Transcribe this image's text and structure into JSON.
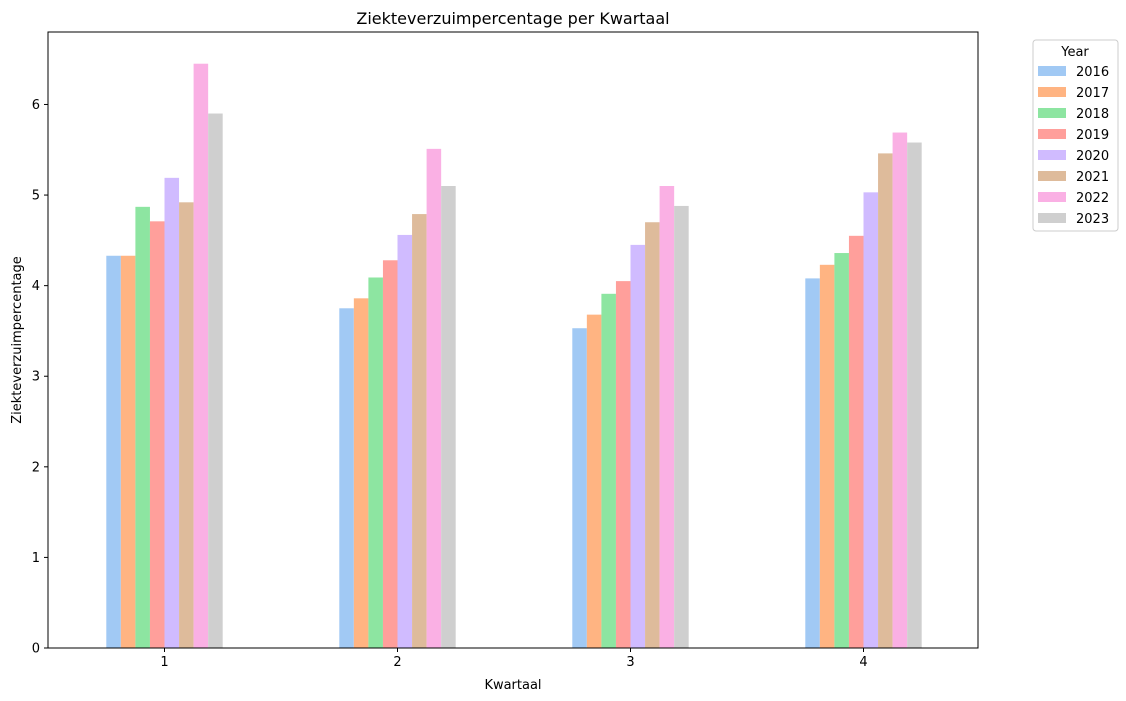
{
  "chart_data": {
    "type": "bar",
    "title": "Ziekteverzuimpercentage per Kwartaal",
    "xlabel": "Kwartaal",
    "ylabel": "Ziekteverzuimpercentage",
    "categories": [
      "1",
      "2",
      "3",
      "4"
    ],
    "ylim": [
      0,
      6.8
    ],
    "yticks": [
      0,
      1,
      2,
      3,
      4,
      5,
      6
    ],
    "grid": false,
    "legend": {
      "title": "Year",
      "placement": "outside-top-right"
    },
    "series": [
      {
        "name": "2016",
        "color": "#a1c9f4",
        "values": [
          4.33,
          3.75,
          3.53,
          4.08
        ]
      },
      {
        "name": "2017",
        "color": "#ffb482",
        "values": [
          4.33,
          3.86,
          3.68,
          4.23
        ]
      },
      {
        "name": "2018",
        "color": "#8de5a1",
        "values": [
          4.87,
          4.09,
          3.91,
          4.36
        ]
      },
      {
        "name": "2019",
        "color": "#ff9f9b",
        "values": [
          4.71,
          4.28,
          4.05,
          4.55
        ]
      },
      {
        "name": "2020",
        "color": "#d0bbff",
        "values": [
          5.19,
          4.56,
          4.45,
          5.03
        ]
      },
      {
        "name": "2021",
        "color": "#debb9b",
        "values": [
          4.92,
          4.79,
          4.7,
          5.46
        ]
      },
      {
        "name": "2022",
        "color": "#fab0e4",
        "values": [
          6.45,
          5.51,
          5.1,
          5.69
        ]
      },
      {
        "name": "2023",
        "color": "#cfcfcf",
        "values": [
          5.9,
          5.1,
          4.88,
          5.58
        ]
      }
    ]
  }
}
